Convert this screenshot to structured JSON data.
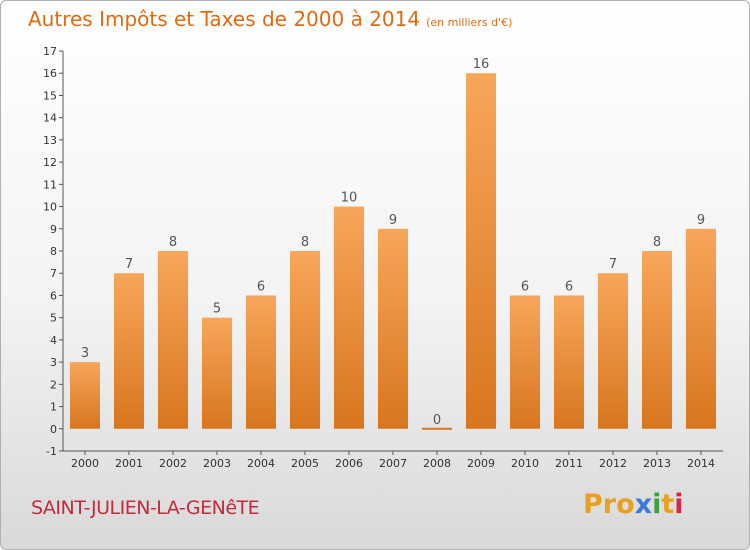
{
  "title": "Autres Impôts et Taxes de 2000 à 2014",
  "unit": "(en milliers d'€)",
  "commune": "SAINT-JULIEN-LA-GENêTE",
  "logo": {
    "text": "Proxiti",
    "letter_colors": [
      "#e8a020",
      "#e8a020",
      "#e8a020",
      "#3b7bd8",
      "#3ba040",
      "#e8a020",
      "#d8284a"
    ]
  },
  "colors": {
    "bar_top": "#f7a65a",
    "bar_bottom": "#d8761e",
    "value_label": "#555555",
    "title": "#e06a10",
    "commune": "#c8283c"
  },
  "chart_data": {
    "type": "bar",
    "title": "Autres Impôts et Taxes de 2000 à 2014",
    "subtitle": "(en milliers d'€)",
    "categories": [
      "2000",
      "2001",
      "2002",
      "2003",
      "2004",
      "2005",
      "2006",
      "2007",
      "2008",
      "2009",
      "2010",
      "2011",
      "2012",
      "2013",
      "2014"
    ],
    "values": [
      3,
      7,
      8,
      5,
      6,
      8,
      10,
      9,
      0,
      16,
      6,
      6,
      7,
      8,
      9
    ],
    "value_labels": [
      "3",
      "7",
      "8",
      "5",
      "6",
      "8",
      "10",
      "9",
      "0",
      "16",
      "6",
      "6",
      "7",
      "8",
      "9"
    ],
    "y_ticks": [
      "-1",
      "0",
      "1",
      "2",
      "3",
      "4",
      "5",
      "6",
      "7",
      "8",
      "9",
      "10",
      "11",
      "12",
      "13",
      "14",
      "15",
      "16",
      "17"
    ],
    "ylim": [
      -1,
      17
    ],
    "xlabel": "",
    "ylabel": "",
    "grid": false,
    "legend": "none"
  }
}
